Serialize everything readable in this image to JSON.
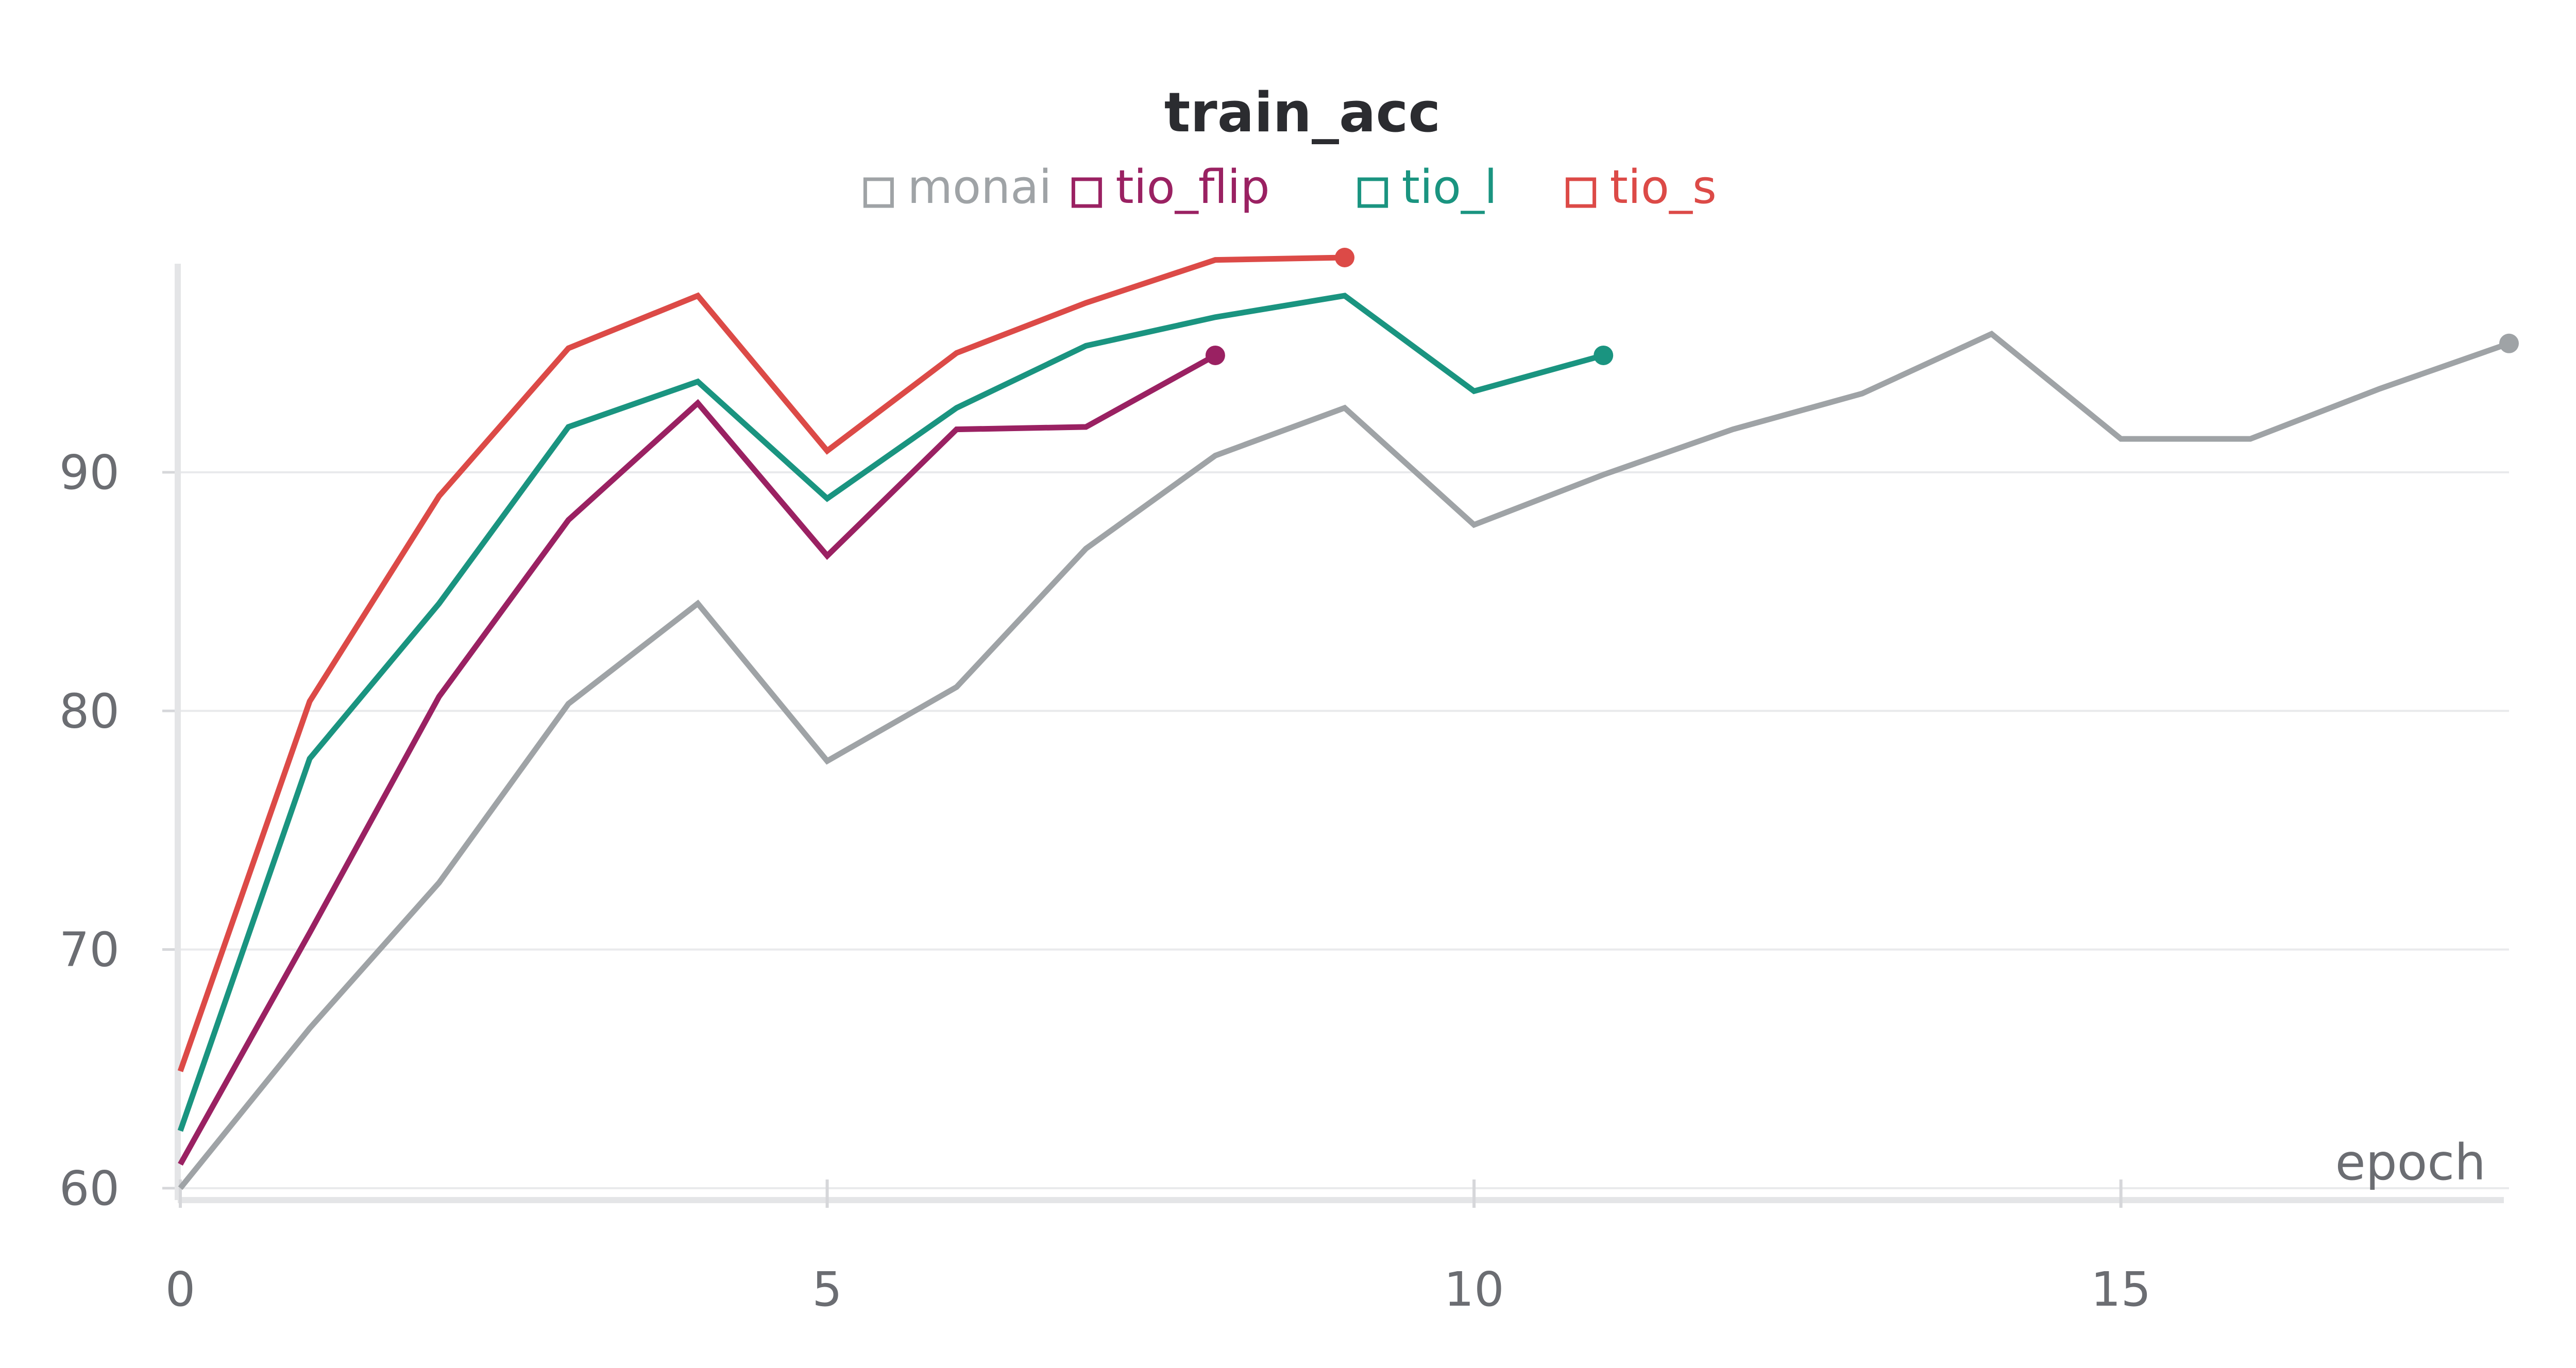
{
  "chart_data": {
    "type": "line",
    "title": "train_acc",
    "xlabel": "epoch",
    "ylabel": "",
    "xlim": [
      0,
      18
    ],
    "ylim": [
      59.5,
      99
    ],
    "x_ticks": [
      0,
      5,
      10,
      15
    ],
    "y_ticks": [
      60,
      70,
      80,
      90
    ],
    "grid": "horizontal",
    "legend_position": "top-center",
    "series": [
      {
        "name": "monai",
        "color": "#9fa3a6",
        "x": [
          0,
          1,
          2,
          3,
          4,
          5,
          6,
          7,
          8,
          9,
          10,
          11,
          12,
          13,
          14,
          15,
          16,
          17,
          18
        ],
        "values": [
          60.0,
          66.7,
          72.8,
          80.3,
          84.5,
          77.9,
          81.0,
          86.8,
          90.7,
          92.7,
          87.8,
          89.9,
          91.8,
          93.3,
          95.8,
          91.4,
          91.4,
          93.5,
          95.4
        ]
      },
      {
        "name": "tio_flip",
        "color": "#9a2162",
        "x": [
          0,
          1,
          2,
          3,
          4,
          5,
          6,
          7,
          8
        ],
        "values": [
          61.0,
          70.7,
          80.6,
          88.0,
          92.9,
          86.5,
          91.8,
          91.9,
          94.9
        ]
      },
      {
        "name": "tio_l",
        "color": "#1a9480",
        "x": [
          0,
          1,
          2,
          3,
          4,
          5,
          6,
          7,
          8,
          9,
          10,
          11
        ],
        "values": [
          62.4,
          78.0,
          84.5,
          91.9,
          93.8,
          88.9,
          92.7,
          95.3,
          96.5,
          97.4,
          93.4,
          94.9
        ]
      },
      {
        "name": "tio_s",
        "color": "#dc4a47",
        "x": [
          0,
          1,
          2,
          3,
          4,
          5,
          6,
          7,
          8,
          9
        ],
        "values": [
          64.9,
          80.4,
          89.0,
          95.2,
          97.4,
          90.9,
          95.0,
          97.1,
          98.9,
          99.0
        ]
      }
    ]
  }
}
